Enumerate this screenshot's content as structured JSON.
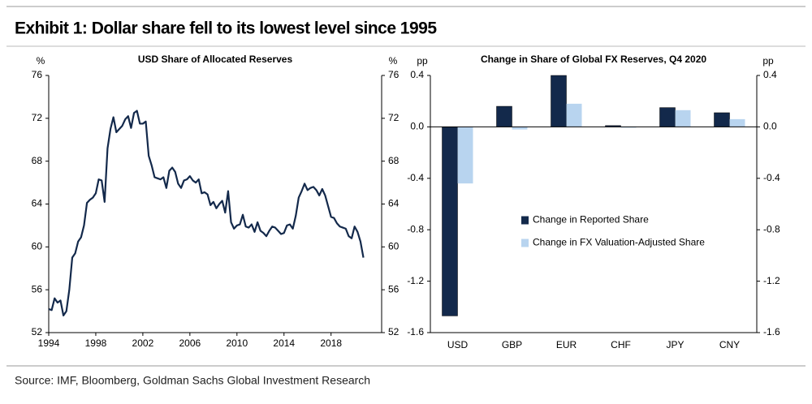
{
  "title": "Exhibit 1: Dollar share fell to its lowest level since 1995",
  "source": "Source: IMF, Bloomberg, Goldman Sachs Global Investment Research",
  "chart_data": [
    {
      "type": "line",
      "title": "USD Share of Allocated Reserves",
      "ylabel": "%",
      "color": "#13294b",
      "x": [
        1994.0,
        1994.25,
        1994.5,
        1994.75,
        1995.0,
        1995.25,
        1995.5,
        1995.75,
        1996.0,
        1996.25,
        1996.5,
        1996.75,
        1997.0,
        1997.25,
        1997.5,
        1997.75,
        1998.0,
        1998.25,
        1998.5,
        1998.75,
        1999.0,
        1999.25,
        1999.5,
        1999.75,
        2000.0,
        2000.25,
        2000.5,
        2000.75,
        2001.0,
        2001.25,
        2001.5,
        2001.75,
        2002.0,
        2002.25,
        2002.5,
        2002.75,
        2003.0,
        2003.25,
        2003.5,
        2003.75,
        2004.0,
        2004.25,
        2004.5,
        2004.75,
        2005.0,
        2005.25,
        2005.5,
        2005.75,
        2006.0,
        2006.25,
        2006.5,
        2006.75,
        2007.0,
        2007.25,
        2007.5,
        2007.75,
        2008.0,
        2008.25,
        2008.5,
        2008.75,
        2009.0,
        2009.25,
        2009.5,
        2009.75,
        2010.0,
        2010.25,
        2010.5,
        2010.75,
        2011.0,
        2011.25,
        2011.5,
        2011.75,
        2012.0,
        2012.25,
        2012.5,
        2012.75,
        2013.0,
        2013.25,
        2013.5,
        2013.75,
        2014.0,
        2014.25,
        2014.5,
        2014.75,
        2015.0,
        2015.25,
        2015.5,
        2015.75,
        2016.0,
        2016.25,
        2016.5,
        2016.75,
        2017.0,
        2017.25,
        2017.5,
        2017.75,
        2018.0,
        2018.25,
        2018.5,
        2018.75,
        2019.0,
        2019.25,
        2019.5,
        2019.75,
        2020.0,
        2020.25,
        2020.5,
        2020.75
      ],
      "values": [
        54.2,
        54.1,
        55.2,
        54.8,
        55.0,
        53.6,
        54.0,
        56.0,
        59.0,
        59.4,
        60.5,
        60.9,
        62.0,
        64.1,
        64.4,
        64.6,
        65.0,
        66.3,
        66.2,
        64.2,
        69.2,
        71.0,
        72.1,
        70.7,
        71.0,
        71.3,
        71.9,
        72.2,
        71.1,
        72.5,
        72.7,
        71.5,
        71.5,
        71.7,
        68.5,
        67.6,
        66.5,
        66.4,
        66.3,
        66.5,
        65.5,
        67.1,
        67.4,
        67.0,
        65.9,
        65.5,
        66.2,
        66.3,
        66.6,
        66.2,
        66.0,
        66.3,
        65.0,
        65.1,
        64.9,
        63.9,
        64.2,
        63.6,
        64.0,
        64.3,
        63.2,
        65.2,
        62.3,
        61.7,
        62.0,
        62.1,
        63.0,
        61.9,
        61.8,
        62.1,
        61.4,
        62.3,
        61.5,
        61.3,
        61.0,
        61.5,
        61.9,
        61.8,
        61.5,
        61.2,
        61.3,
        62.0,
        62.1,
        61.7,
        62.9,
        64.6,
        65.2,
        65.9,
        65.3,
        65.5,
        65.6,
        65.3,
        64.8,
        65.4,
        64.8,
        63.8,
        62.8,
        62.7,
        62.2,
        61.9,
        61.8,
        61.7,
        61.0,
        60.8,
        61.9,
        61.4,
        60.5,
        59.0
      ],
      "xlim": [
        1994,
        2022.3
      ],
      "xticks": [
        1994,
        1998,
        2002,
        2006,
        2010,
        2014,
        2018
      ],
      "ylim": [
        52,
        76
      ],
      "yticks": [
        52,
        56,
        60,
        64,
        68,
        72,
        76
      ]
    },
    {
      "type": "bar",
      "title": "Change in Share of Global FX Reserves, Q4 2020",
      "ylabel": "pp",
      "categories": [
        "USD",
        "GBP",
        "EUR",
        "CHF",
        "JPY",
        "CNY"
      ],
      "series": [
        {
          "name": "Change in Reported Share",
          "color": "#13294b",
          "values": [
            -1.47,
            0.16,
            0.4,
            0.01,
            0.15,
            0.11
          ]
        },
        {
          "name": "Change in FX Valuation-Adjusted Share",
          "color": "#b8d4ef",
          "values": [
            -0.44,
            -0.02,
            0.18,
            0.0,
            0.13,
            0.06
          ]
        }
      ],
      "ylim": [
        -1.6,
        0.4
      ],
      "yticks": [
        {
          "value": -1.6,
          "label": "-1.6"
        },
        {
          "value": -1.2,
          "label": "-1.2"
        },
        {
          "value": -0.8,
          "label": "-0.8"
        },
        {
          "value": -0.4,
          "label": "-0.4"
        },
        {
          "value": 0,
          "label": "0.0"
        },
        {
          "value": 0.4,
          "label": "0.4"
        }
      ],
      "legend": "center right"
    }
  ]
}
